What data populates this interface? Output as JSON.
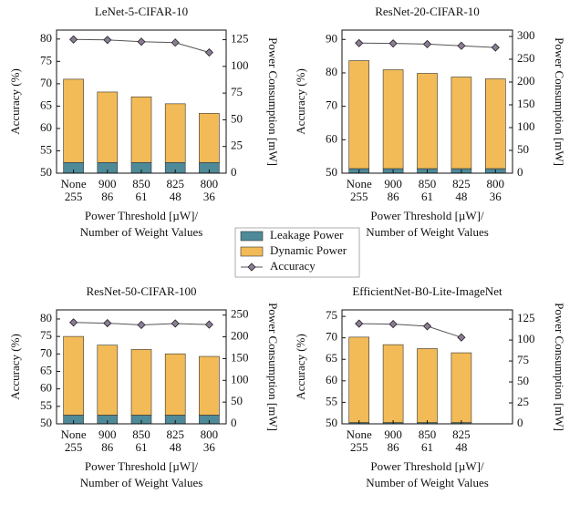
{
  "chart_data": [
    {
      "type": "bar_line",
      "title": "LeNet-5-CIFAR-10",
      "categories": [
        [
          "None",
          "255"
        ],
        [
          "900",
          "86"
        ],
        [
          "850",
          "61"
        ],
        [
          "825",
          "48"
        ],
        [
          "800",
          "36"
        ]
      ],
      "xlabel": [
        "Power Threshold [µW]/",
        "Number of Weight Values"
      ],
      "ylabel": "Accuracy (%)",
      "y2label": "Power Consumption [mW]",
      "ylim": [
        50,
        82
      ],
      "yticks": [
        50,
        55,
        60,
        65,
        70,
        75,
        80
      ],
      "y2lim": [
        0,
        134
      ],
      "y2ticks": [
        0,
        25,
        50,
        75,
        100,
        125
      ],
      "series": [
        {
          "name": "Leakage Power",
          "color": "#4e8a98",
          "axis": "y2",
          "values": [
            10,
            10,
            10,
            10,
            10
          ]
        },
        {
          "name": "Dynamic Power",
          "color": "#f2bb57",
          "axis": "y2",
          "values": [
            78,
            66,
            61.5,
            55,
            46
          ]
        },
        {
          "name": "Accuracy",
          "color": "#8b7d96",
          "values": [
            79.9,
            79.8,
            79.4,
            79.2,
            77.0
          ]
        }
      ]
    },
    {
      "type": "bar_line",
      "title": "ResNet-20-CIFAR-10",
      "categories": [
        [
          "None",
          "255"
        ],
        [
          "900",
          "86"
        ],
        [
          "850",
          "61"
        ],
        [
          "825",
          "48"
        ],
        [
          "800",
          "36"
        ]
      ],
      "xlabel": [
        "Power Threshold [µW]/",
        "Number of Weight Values"
      ],
      "ylabel": "Accuracy (%)",
      "y2label": "Power Consumption [mW]",
      "ylim": [
        50,
        92.8
      ],
      "yticks": [
        50,
        60,
        70,
        80,
        90
      ],
      "y2lim": [
        0,
        314
      ],
      "y2ticks": [
        0,
        50,
        100,
        150,
        200,
        250,
        300
      ],
      "series": [
        {
          "name": "Leakage Power",
          "color": "#4e8a98",
          "axis": "y2",
          "values": [
            10,
            10,
            10,
            10,
            10
          ]
        },
        {
          "name": "Dynamic Power",
          "color": "#f2bb57",
          "axis": "y2",
          "values": [
            237,
            217,
            209,
            201,
            197
          ]
        },
        {
          "name": "Accuracy",
          "color": "#8b7d96",
          "values": [
            88.9,
            88.8,
            88.6,
            88.1,
            87.6
          ]
        }
      ]
    },
    {
      "type": "bar_line",
      "title": "ResNet-50-CIFAR-100",
      "categories": [
        [
          "None",
          "255"
        ],
        [
          "900",
          "86"
        ],
        [
          "850",
          "61"
        ],
        [
          "825",
          "48"
        ],
        [
          "800",
          "36"
        ]
      ],
      "xlabel": [
        "Power Threshold [µW]/",
        "Number of Weight Values"
      ],
      "ylabel": "Accuracy (%)",
      "y2label": "Power Consumption [mW]",
      "ylim": [
        50,
        82.6
      ],
      "yticks": [
        50,
        55,
        60,
        65,
        70,
        75,
        80
      ],
      "y2lim": [
        0,
        262
      ],
      "y2ticks": [
        0,
        50,
        100,
        150,
        200,
        250
      ],
      "series": [
        {
          "name": "Leakage Power",
          "color": "#4e8a98",
          "axis": "y2",
          "values": [
            20,
            20,
            20,
            20,
            20
          ]
        },
        {
          "name": "Dynamic Power",
          "color": "#f2bb57",
          "axis": "y2",
          "values": [
            181,
            161,
            151,
            141,
            135
          ]
        },
        {
          "name": "Accuracy",
          "color": "#8b7d96",
          "values": [
            79.0,
            78.8,
            78.3,
            78.7,
            78.4
          ]
        }
      ]
    },
    {
      "type": "bar_line",
      "title": "EfficientNet-B0-Lite-ImageNet",
      "categories": [
        [
          "None",
          "255"
        ],
        [
          "900",
          "86"
        ],
        [
          "850",
          "61"
        ],
        [
          "825",
          "48"
        ],
        null
      ],
      "xlabel": [
        "Power Threshold [µW]/",
        "Number of Weight Values"
      ],
      "ylabel": "Accuracy (%)",
      "y2label": "Power Consumption [mW]",
      "ylim": [
        50,
        76.5
      ],
      "yticks": [
        50,
        55,
        60,
        65,
        70,
        75
      ],
      "y2lim": [
        0,
        136
      ],
      "y2ticks": [
        0,
        25,
        50,
        75,
        100,
        125
      ],
      "series": [
        {
          "name": "Leakage Power",
          "color": "#4e8a98",
          "axis": "y2",
          "values": [
            1.5,
            1.5,
            1.5,
            1.5,
            null
          ]
        },
        {
          "name": "Dynamic Power",
          "color": "#f2bb57",
          "axis": "y2",
          "values": [
            102,
            93,
            88.3,
            83.3,
            null
          ]
        },
        {
          "name": "Accuracy",
          "color": "#8b7d96",
          "values": [
            73.3,
            73.2,
            72.7,
            70.1,
            null
          ]
        }
      ]
    }
  ]
}
